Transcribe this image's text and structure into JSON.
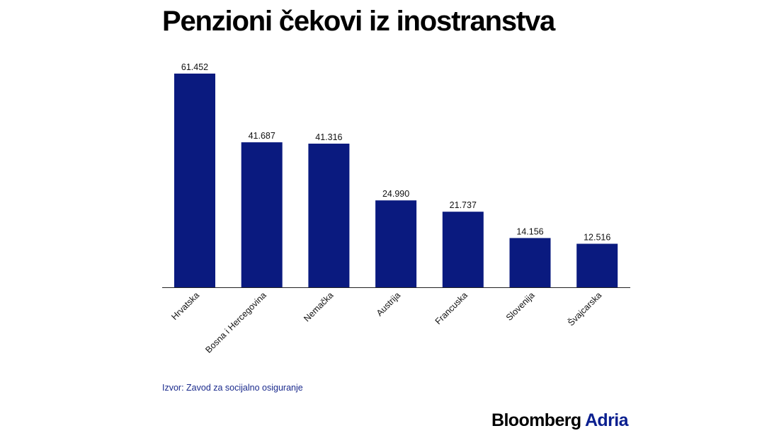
{
  "chart_data": {
    "type": "bar",
    "title": "Penzioni čekovi iz inostranstva",
    "categories": [
      "Hrvatska",
      "Bosna i Hercegovina",
      "Nemačka",
      "Austrija",
      "Francuska",
      "Slovenija",
      "Švajcarska"
    ],
    "values": [
      61452,
      41687,
      41316,
      24990,
      21737,
      14156,
      12516
    ],
    "data_labels": [
      "61.452",
      "41.687",
      "41.316",
      "24.990",
      "21.737",
      "14.156",
      "12.516"
    ],
    "ylim": [
      0,
      61452
    ],
    "grid": false,
    "legend": "none",
    "bar_color": "#0a1a7f",
    "axis_color": "#222222",
    "label_color": "#111111"
  },
  "source": "Izvor: Zavod za socijalno osiguranje",
  "brand": {
    "main": "Bloomberg",
    "accent": "Adria",
    "accent_color": "#0a1f8f"
  }
}
